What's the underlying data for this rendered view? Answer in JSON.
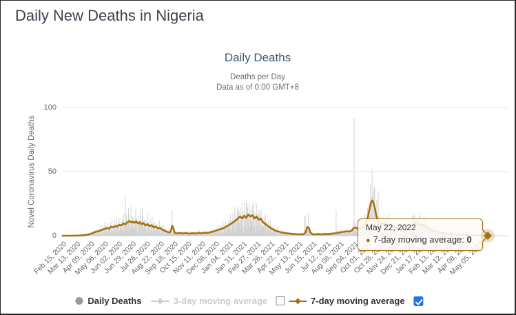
{
  "page": {
    "title": "Daily New Deaths in Nigeria"
  },
  "chart": {
    "title": "Daily Deaths",
    "subtitle_line1": "Deaths per Day",
    "subtitle_line2": "Data as of 0:00 GMT+8",
    "y_axis": {
      "title": "Novel Coronavirus Daily Deaths"
    }
  },
  "tooltip": {
    "date": "May 22, 2022",
    "series_label": "7-day moving average",
    "separator": ": ",
    "value": "0"
  },
  "legend": {
    "items": [
      {
        "label": "Daily Deaths",
        "marker": "circle",
        "color": "#999999",
        "text_color": "#333333",
        "active": true
      },
      {
        "label": "3-day moving average",
        "marker": "diamond-line",
        "color": "#CCCCCC",
        "text_color": "#CBCBCB",
        "active": false
      },
      {
        "label": "7-day moving average",
        "marker": "diamond-line",
        "color": "#A8700F",
        "text_color": "#333333",
        "active": true
      }
    ],
    "checkbox_3day_checked": false,
    "checkbox_7day_checked": true
  },
  "colors": {
    "accent_gold": "#A8700F",
    "bars_gray": "#CDCDCD",
    "grid_line": "#E6E6E6",
    "axis_line": "#CCD6EB",
    "checkbox_blue": "#2273E8",
    "tooltip_fill": "#FDFBF7"
  },
  "chart_data": {
    "type": "bar+line",
    "title": "Daily Deaths",
    "subtitle": [
      "Deaths per Day",
      "Data as of 0:00 GMT+8"
    ],
    "ylabel": "Novel Coronavirus Daily Deaths",
    "ylim": [
      0,
      100
    ],
    "yticks": [
      0,
      50,
      100
    ],
    "grid": true,
    "x_start_date": "Feb 15, 2020",
    "x_end_date": "May 22, 2022",
    "total_days": 827,
    "x_tick_interval_days": 27,
    "x_tick_labels": [
      "Feb 15, 2020",
      "Mar 13, 2020",
      "Apr 09, 2020",
      "May 06, 2020",
      "Jun 02, 2020",
      "Jun 29, 2020",
      "Jul 26, 2020",
      "Aug 22, 2020",
      "Sep 18, 2020",
      "Oct 15, 2020",
      "Nov 11, 2020",
      "Dec 08, 2020",
      "Jan 04, 2021",
      "Jan 31, 2021",
      "Feb 27, 2021",
      "Mar 26, 2021",
      "Apr 22, 2021",
      "May 19, 2021",
      "Jun 15, 2021",
      "Jul 12, 2021",
      "Aug 08, 2021",
      "Sep 04, 2021",
      "Oct 01, 2021",
      "Oct 28, 2021",
      "Nov 24, 2021",
      "Dec 21, 2021",
      "Jan 17, 2022",
      "Feb 13, 2022",
      "Mar 12, 2022",
      "Apr 08, 2022",
      "May 05, 2022"
    ],
    "legend_position": "bottom",
    "series": [
      {
        "name": "Daily Deaths",
        "type": "column",
        "color": "#CDCDCD",
        "visible": true,
        "spikes": [
          [
            122,
            31
          ],
          [
            133,
            24
          ],
          [
            155,
            22
          ],
          [
            213,
            20
          ],
          [
            341,
            22
          ],
          [
            357,
            26
          ],
          [
            369,
            24
          ],
          [
            381,
            21
          ],
          [
            470,
            15
          ],
          [
            473,
            16
          ],
          [
            478,
            18
          ],
          [
            532,
            20
          ],
          [
            567,
            92
          ],
          [
            599,
            40
          ],
          [
            606,
            38
          ],
          [
            614,
            35
          ],
          [
            660,
            12
          ],
          [
            683,
            17
          ],
          [
            695,
            15
          ],
          [
            706,
            14
          ]
        ],
        "noise_pattern": [
          0.75,
          1.5,
          0.4,
          1.15,
          1.9,
          0.55,
          1.3,
          0.2,
          1.0,
          1.7,
          0.5,
          1.2,
          0.85,
          1.95,
          0.3,
          1.4,
          0.9,
          0.6,
          1.6,
          0.45,
          1.05,
          1.35,
          0.7
        ]
      },
      {
        "name": "3-day moving average",
        "type": "line",
        "color": "#CCCCCC",
        "visible": false
      },
      {
        "name": "7-day moving average",
        "type": "line",
        "color": "#A8700F",
        "visible": true,
        "points": [
          [
            0,
            0
          ],
          [
            20,
            0
          ],
          [
            35,
            0.2
          ],
          [
            45,
            0.6
          ],
          [
            52,
            1.2
          ],
          [
            58,
            2
          ],
          [
            64,
            3
          ],
          [
            70,
            3.6
          ],
          [
            76,
            4.5
          ],
          [
            82,
            5.5
          ],
          [
            86,
            6
          ],
          [
            90,
            5.5
          ],
          [
            94,
            7
          ],
          [
            98,
            6.5
          ],
          [
            102,
            7.5
          ],
          [
            106,
            7
          ],
          [
            110,
            8.5
          ],
          [
            114,
            8
          ],
          [
            118,
            9.5
          ],
          [
            122,
            9
          ],
          [
            126,
            10.5
          ],
          [
            130,
            11.5
          ],
          [
            133,
            10.5
          ],
          [
            136,
            11
          ],
          [
            139,
            10
          ],
          [
            143,
            11.2
          ],
          [
            147,
            9.5
          ],
          [
            150,
            10.5
          ],
          [
            153,
            9
          ],
          [
            157,
            10
          ],
          [
            161,
            8
          ],
          [
            165,
            9
          ],
          [
            169,
            7.5
          ],
          [
            173,
            8.2
          ],
          [
            177,
            6.5
          ],
          [
            181,
            7.2
          ],
          [
            185,
            5.8
          ],
          [
            189,
            6.2
          ],
          [
            193,
            5
          ],
          [
            197,
            4.2
          ],
          [
            201,
            3.4
          ],
          [
            205,
            2.8
          ],
          [
            208,
            2.4
          ],
          [
            211,
            4.5
          ],
          [
            213,
            7.8
          ],
          [
            215,
            6
          ],
          [
            218,
            2.2
          ],
          [
            222,
            1.8
          ],
          [
            228,
            2.2
          ],
          [
            234,
            1.7
          ],
          [
            240,
            2.1
          ],
          [
            246,
            1.6
          ],
          [
            252,
            2
          ],
          [
            258,
            1.7
          ],
          [
            264,
            2.2
          ],
          [
            270,
            1.9
          ],
          [
            276,
            2.4
          ],
          [
            282,
            2.1
          ],
          [
            288,
            2.8
          ],
          [
            294,
            3.4
          ],
          [
            300,
            4.2
          ],
          [
            306,
            5
          ],
          [
            312,
            5.8
          ],
          [
            318,
            7
          ],
          [
            324,
            8.5
          ],
          [
            330,
            10
          ],
          [
            336,
            11.8
          ],
          [
            341,
            13.5
          ],
          [
            345,
            15
          ],
          [
            349,
            13.5
          ],
          [
            353,
            15.5
          ],
          [
            357,
            14
          ],
          [
            361,
            16.5
          ],
          [
            365,
            15
          ],
          [
            369,
            16
          ],
          [
            373,
            13.5
          ],
          [
            377,
            15
          ],
          [
            381,
            12.5
          ],
          [
            385,
            13.5
          ],
          [
            389,
            11
          ],
          [
            393,
            9.5
          ],
          [
            398,
            8
          ],
          [
            403,
            6.5
          ],
          [
            408,
            5.2
          ],
          [
            414,
            4
          ],
          [
            420,
            3.2
          ],
          [
            426,
            2.6
          ],
          [
            432,
            2.2
          ],
          [
            438,
            1.8
          ],
          [
            444,
            1.5
          ],
          [
            450,
            1.3
          ],
          [
            456,
            1.2
          ],
          [
            462,
            1.1
          ],
          [
            468,
            1.2
          ],
          [
            472,
            2.2
          ],
          [
            476,
            6.8
          ],
          [
            479,
            6.2
          ],
          [
            482,
            2.5
          ],
          [
            486,
            1.2
          ],
          [
            492,
            1
          ],
          [
            498,
            1.3
          ],
          [
            504,
            1.1
          ],
          [
            510,
            1.4
          ],
          [
            516,
            1.2
          ],
          [
            522,
            1.5
          ],
          [
            528,
            1.8
          ],
          [
            534,
            2.2
          ],
          [
            540,
            2.6
          ],
          [
            546,
            3
          ],
          [
            552,
            3.4
          ],
          [
            558,
            3.2
          ],
          [
            563,
            4.2
          ],
          [
            566,
            6
          ],
          [
            569,
            6.5
          ],
          [
            572,
            6
          ],
          [
            575,
            5.2
          ],
          [
            578,
            5.6
          ],
          [
            582,
            6.2
          ],
          [
            586,
            7.5
          ],
          [
            590,
            10
          ],
          [
            594,
            15
          ],
          [
            597,
            21
          ],
          [
            600,
            26
          ],
          [
            602,
            27.5
          ],
          [
            604,
            26.5
          ],
          [
            607,
            22
          ],
          [
            610,
            16
          ],
          [
            613,
            11.5
          ],
          [
            616,
            9.5
          ],
          [
            619,
            9
          ],
          [
            622,
            9.8
          ],
          [
            625,
            8.8
          ],
          [
            628,
            9.4
          ],
          [
            631,
            8.4
          ],
          [
            634,
            8.8
          ],
          [
            638,
            7.8
          ],
          [
            642,
            7.2
          ],
          [
            646,
            6.6
          ],
          [
            650,
            6
          ],
          [
            655,
            5.4
          ],
          [
            660,
            4.8
          ],
          [
            665,
            4.4
          ],
          [
            670,
            4.8
          ],
          [
            675,
            6
          ],
          [
            680,
            8
          ],
          [
            684,
            9.8
          ],
          [
            687,
            10.5
          ],
          [
            690,
            9.2
          ],
          [
            693,
            9.8
          ],
          [
            696,
            8.6
          ],
          [
            699,
            8
          ],
          [
            702,
            8.4
          ],
          [
            706,
            7.2
          ],
          [
            710,
            6.2
          ],
          [
            714,
            5.2
          ],
          [
            718,
            4.4
          ],
          [
            723,
            3.6
          ],
          [
            728,
            3
          ],
          [
            734,
            2.4
          ],
          [
            740,
            2
          ],
          [
            747,
            1.6
          ],
          [
            754,
            1.3
          ],
          [
            761,
            1
          ],
          [
            768,
            0.8
          ],
          [
            776,
            0.6
          ],
          [
            784,
            0.5
          ],
          [
            792,
            0.4
          ],
          [
            800,
            0.3
          ],
          [
            808,
            0.2
          ],
          [
            815,
            0.1
          ],
          [
            821,
            0
          ],
          [
            827,
            0
          ]
        ]
      }
    ],
    "highlighted_point": {
      "date": "May 22, 2022",
      "series": "7-day moving average",
      "value": 0
    }
  }
}
